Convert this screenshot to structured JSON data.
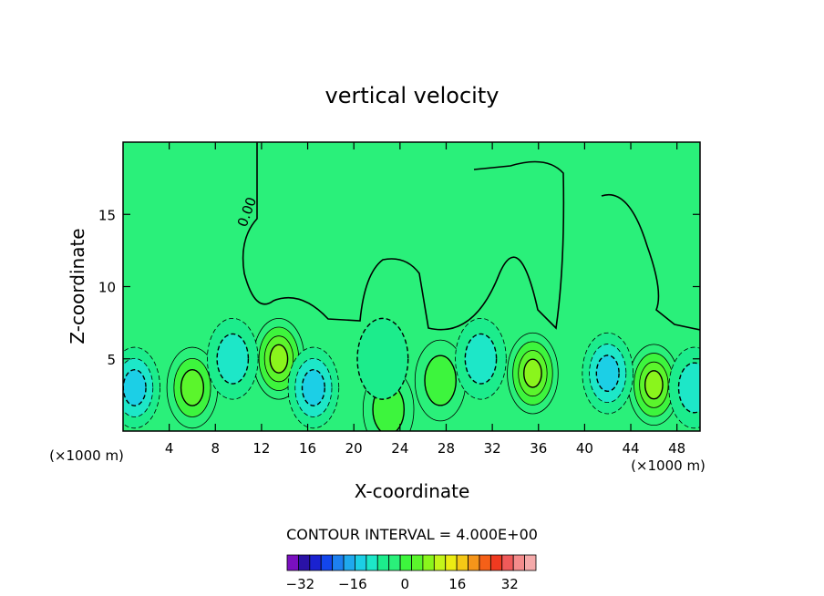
{
  "chart_data": {
    "type": "heatmap",
    "title": "vertical velocity",
    "xlabel": "X-coordinate",
    "ylabel": "Z-coordinate",
    "x_unit_left": "(×1000 m)",
    "x_unit_right": "(×1000 m)",
    "xlim": [
      0,
      50
    ],
    "ylim": [
      0,
      20
    ],
    "xticks": [
      4,
      8,
      12,
      16,
      20,
      24,
      28,
      32,
      36,
      40,
      44,
      48
    ],
    "yticks": [
      5,
      10,
      15
    ],
    "contour_label": "0.00",
    "contour_interval_text": "CONTOUR INTERVAL = 4.000E+00",
    "contour_interval": 4,
    "colorbar": {
      "ticks": [
        -32,
        -16,
        0,
        16,
        32
      ],
      "colors": [
        "#7a0fbf",
        "#2a12a6",
        "#1a22d0",
        "#1346ec",
        "#1d80f0",
        "#1fa9ee",
        "#1ccfe6",
        "#1de7c8",
        "#1cec8c",
        "#2af07a",
        "#3df53d",
        "#5bf52c",
        "#8af51c",
        "#c4f51a",
        "#ecec13",
        "#f5c816",
        "#f5951a",
        "#f56018",
        "#f03a20",
        "#f05a5a",
        "#f58c8c",
        "#f5aaaa"
      ],
      "lower_bound": -36,
      "upper_bound": 40
    },
    "background_value": 0,
    "cells": [
      {
        "x": 6,
        "z": 3,
        "value": 12
      },
      {
        "x": 13.5,
        "z": 5,
        "value": 16
      },
      {
        "x": 35.5,
        "z": 4,
        "value": 16
      },
      {
        "x": 46,
        "z": 3.2,
        "value": 16
      },
      {
        "x": 27.5,
        "z": 3.5,
        "value": 8
      },
      {
        "x": 23,
        "z": 1.5,
        "value": 8
      },
      {
        "x": 1,
        "z": 3,
        "value": -12
      },
      {
        "x": 9.5,
        "z": 5,
        "value": -8
      },
      {
        "x": 16.5,
        "z": 3,
        "value": -12
      },
      {
        "x": 31,
        "z": 5,
        "value": -8
      },
      {
        "x": 42,
        "z": 4,
        "value": -12
      },
      {
        "x": 49.5,
        "z": 3,
        "value": -8
      },
      {
        "x": 22.5,
        "z": 5,
        "value": -4
      }
    ]
  }
}
